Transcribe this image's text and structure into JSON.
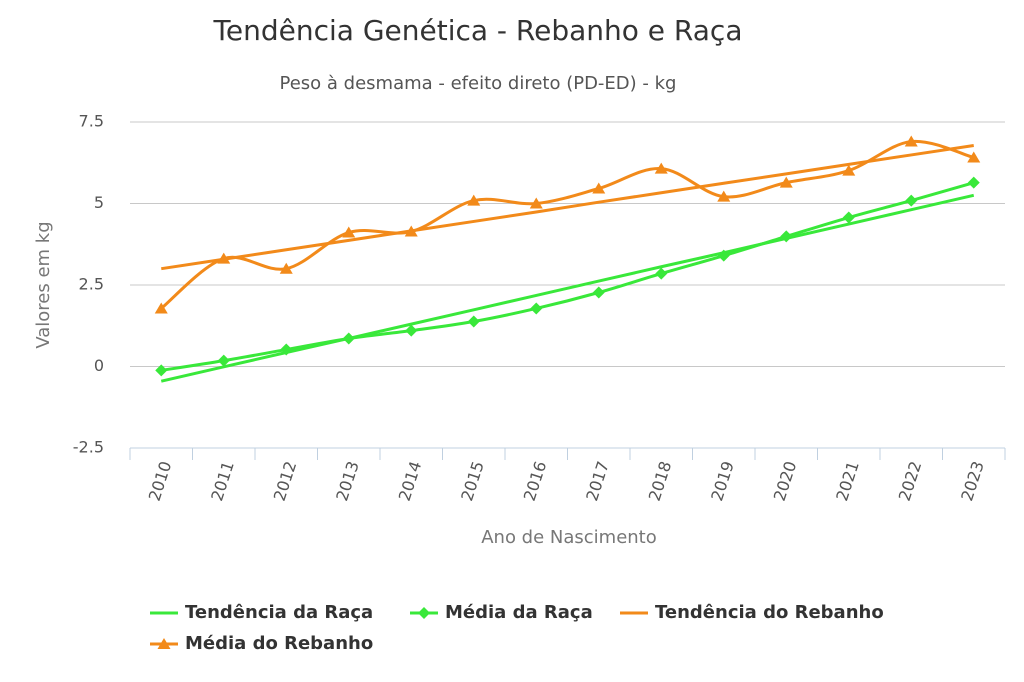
{
  "chart_data": {
    "type": "line",
    "title": "Tendência Genética - Rebanho e Raça",
    "subtitle": "Peso à desmama - efeito direto (PD-ED) - kg",
    "y_label": "Valores em kg",
    "x_label": "Ano de Nascimento",
    "categories": [
      "2010",
      "2011",
      "2012",
      "2013",
      "2014",
      "2015",
      "2016",
      "2017",
      "2018",
      "2019",
      "2020",
      "2021",
      "2022",
      "2023"
    ],
    "ylim": [
      -2.5,
      7.5
    ],
    "yticks": [
      -2.5,
      0,
      2.5,
      5,
      7.5
    ],
    "grid": true,
    "series": [
      {
        "name": "Tendência da Raça",
        "color": "#39e83a",
        "smooth": false,
        "values": [
          -0.45,
          -0.01,
          0.43,
          0.86,
          1.3,
          1.74,
          2.18,
          2.62,
          3.06,
          3.49,
          3.93,
          4.37,
          4.81,
          5.25
        ]
      },
      {
        "name": "Média da Raça",
        "color": "#39e83a",
        "smooth": true,
        "marker": "diamond",
        "values": [
          -0.12,
          0.18,
          0.52,
          0.86,
          1.1,
          1.38,
          1.78,
          2.27,
          2.85,
          3.4,
          3.99,
          4.57,
          5.09,
          5.64
        ]
      },
      {
        "name": "Tendência do Rebanho",
        "color": "#f28a1a",
        "smooth": false,
        "values": [
          3.0,
          3.29,
          3.58,
          3.87,
          4.16,
          4.45,
          4.74,
          5.04,
          5.33,
          5.62,
          5.91,
          6.2,
          6.49,
          6.78
        ]
      },
      {
        "name": "Média do Rebanho",
        "color": "#f28a1a",
        "smooth": true,
        "marker": "triangle",
        "values": [
          1.78,
          3.31,
          3.0,
          4.11,
          4.14,
          5.09,
          5.0,
          5.46,
          6.07,
          5.21,
          5.64,
          6.01,
          6.9,
          6.41
        ]
      }
    ]
  }
}
